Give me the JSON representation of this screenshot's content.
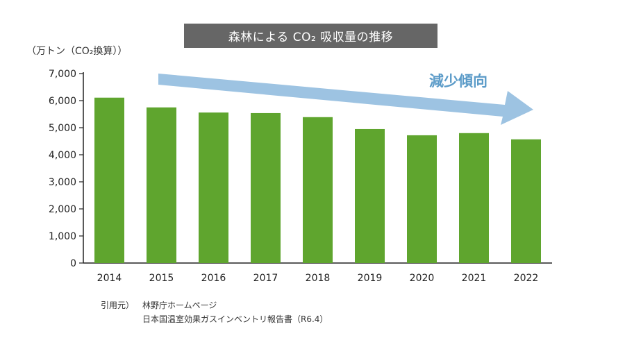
{
  "chart_data": {
    "type": "bar",
    "title": "森林による CO₂ 吸収量の推移",
    "ylabel": "（万トン（CO₂換算））",
    "xlabel": "",
    "categories": [
      "2014",
      "2015",
      "2016",
      "2017",
      "2018",
      "2019",
      "2020",
      "2021",
      "2022"
    ],
    "values": [
      6110,
      5750,
      5560,
      5540,
      5390,
      4950,
      4720,
      4800,
      4570
    ],
    "ylim": [
      0,
      7000
    ],
    "yticks": [
      0,
      1000,
      2000,
      3000,
      4000,
      5000,
      6000,
      7000
    ],
    "ytick_labels": [
      "0",
      "1,000",
      "2,000",
      "3,000",
      "4,000",
      "5,000",
      "6,000",
      "7,000"
    ],
    "grid": false,
    "bar_color": "#5fa52e",
    "annotation": {
      "text": "減少傾向",
      "color": "#5b9bc8",
      "arrow_color": "#9dc3e2"
    }
  },
  "source": {
    "label": "引用元）",
    "line1": "林野庁ホームページ",
    "line2": "日本国温室効果ガスインベントリ報告書（R6.4）"
  }
}
